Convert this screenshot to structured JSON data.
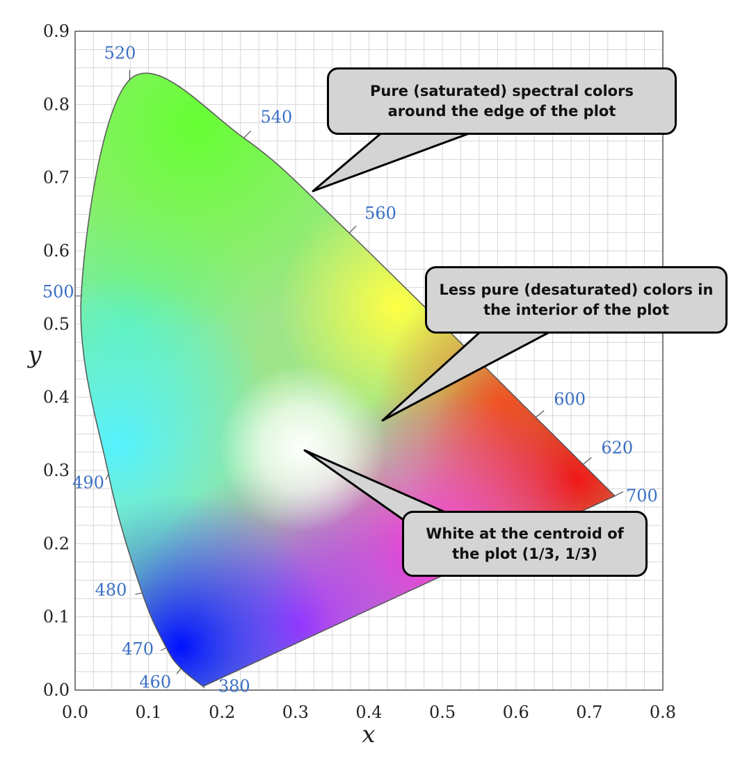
{
  "chart_data": {
    "type": "scatter",
    "xlabel": "x",
    "ylabel": "y",
    "xlim": [
      0.0,
      0.8
    ],
    "ylim": [
      0.0,
      0.9
    ],
    "xticks": [
      "0.0",
      "0.1",
      "0.2",
      "0.3",
      "0.4",
      "0.5",
      "0.6",
      "0.7",
      "0.8"
    ],
    "yticks": [
      "0.0",
      "0.1",
      "0.2",
      "0.3",
      "0.4",
      "0.5",
      "0.6",
      "0.7",
      "0.8",
      "0.9"
    ],
    "grid": true,
    "spectral_locus": [
      {
        "label": "380",
        "x": 0.1741,
        "y": 0.005
      },
      {
        "label": "460",
        "x": 0.144,
        "y": 0.0297
      },
      {
        "label": "470",
        "x": 0.1241,
        "y": 0.0578
      },
      {
        "label": "480",
        "x": 0.0913,
        "y": 0.1327
      },
      {
        "label": "490",
        "x": 0.0454,
        "y": 0.295
      },
      {
        "label": "500",
        "x": 0.0082,
        "y": 0.5384
      },
      {
        "label": "520",
        "x": 0.0743,
        "y": 0.8338
      },
      {
        "label": "540",
        "x": 0.2296,
        "y": 0.7543
      },
      {
        "label": "560",
        "x": 0.3731,
        "y": 0.6245
      },
      {
        "label": "600",
        "x": 0.627,
        "y": 0.3725
      },
      {
        "label": "620",
        "x": 0.6915,
        "y": 0.3083
      },
      {
        "label": "700",
        "x": 0.7347,
        "y": 0.2653
      }
    ],
    "white_point": {
      "x": 0.3333,
      "y": 0.3333
    },
    "label_color": "#3a6fc4"
  },
  "callouts": {
    "edge": "Pure (saturated) spectral colors around the edge of the plot",
    "interior": "Less pure (desaturated) colors in the interior of the plot",
    "white": "White at the centroid of the plot (1/3, 1/3)"
  }
}
